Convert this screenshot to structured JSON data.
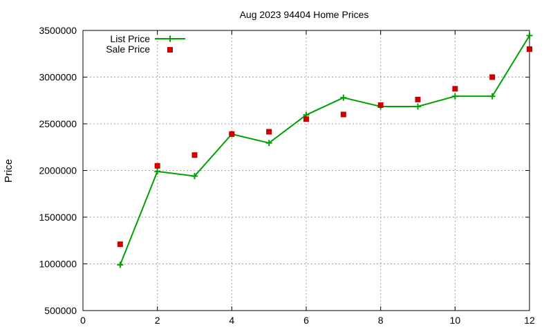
{
  "chart_data": {
    "type": "line",
    "title": "Aug 2023 94404 Home Prices",
    "xlabel": "",
    "ylabel": "Price",
    "xlim": [
      0,
      12
    ],
    "ylim": [
      500000,
      3500000
    ],
    "xticks": [
      "0",
      "2",
      "4",
      "6",
      "8",
      "10",
      "12"
    ],
    "yticks": [
      "500000",
      "1000000",
      "1500000",
      "2000000",
      "2500000",
      "3000000",
      "3500000"
    ],
    "grid": true,
    "legend_position": "top-left",
    "series": [
      {
        "name": "List Price",
        "style": "line with plus markers",
        "color": "#00a000",
        "x": [
          1,
          2,
          3,
          4,
          5,
          6,
          7,
          8,
          9,
          10,
          11,
          12
        ],
        "y": [
          990000,
          1990000,
          1940000,
          2390000,
          2295000,
          2595000,
          2780000,
          2685000,
          2685000,
          2795000,
          2795000,
          3445000
        ]
      },
      {
        "name": "Sale Price",
        "style": "square markers",
        "color": "#cc0000",
        "x": [
          1,
          2,
          3,
          4,
          5,
          6,
          7,
          8,
          9,
          10,
          11,
          12
        ],
        "y": [
          1210000,
          2050000,
          2165000,
          2390000,
          2415000,
          2550000,
          2600000,
          2700000,
          2760000,
          2875000,
          3000000,
          3300000
        ]
      }
    ]
  }
}
